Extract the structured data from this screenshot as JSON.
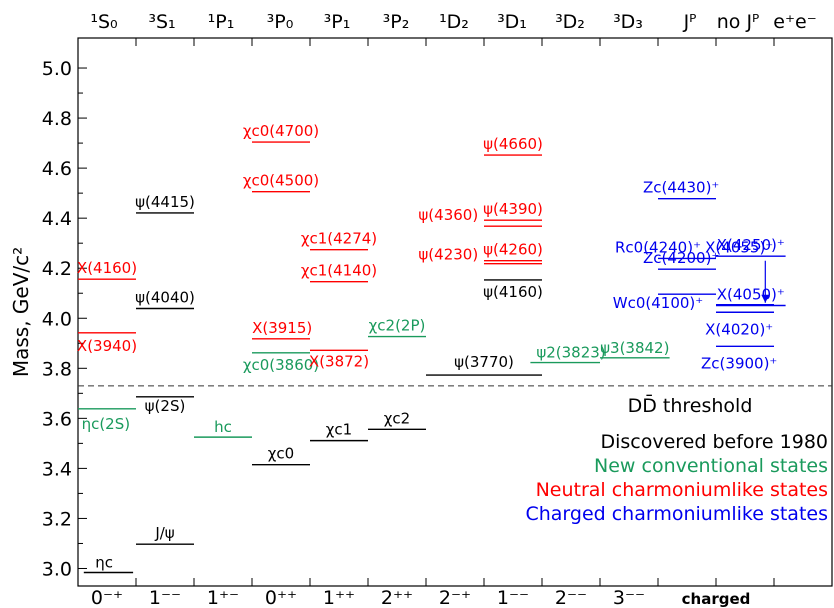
{
  "chart_data": {
    "type": "scatter",
    "ylabel": "Mass, GeV/c²",
    "ylim": [
      2.93,
      5.12
    ],
    "yticks": [
      3.0,
      3.2,
      3.4,
      3.6,
      3.8,
      4.0,
      4.2,
      4.4,
      4.6,
      4.8,
      5.0
    ],
    "top_columns": [
      "¹S₀",
      "³S₁",
      "¹P₁",
      "³P₀",
      "³P₁",
      "³P₂",
      "¹D₂",
      "³D₁",
      "³D₂",
      "³D₃",
      "Jᴾ",
      "no Jᴾ",
      "e⁺e⁻"
    ],
    "bottom_columns": [
      "0⁻⁺",
      "1⁻⁻",
      "1⁺⁻",
      "0⁺⁺",
      "1⁺⁺",
      "2⁺⁺",
      "2⁻⁺",
      "1⁻⁻",
      "2⁻⁻",
      "3⁻⁻",
      "charged"
    ],
    "threshold": {
      "mass": 3.73,
      "label": "DD̄ threshold"
    },
    "legend_placement": "bottom-right",
    "legend": [
      {
        "label": "Discovered before 1980",
        "color": "#000000"
      },
      {
        "label": "New conventional states",
        "color": "#1a9a5c"
      },
      {
        "label": "Neutral charmoniumlike states",
        "color": "#ff0000"
      },
      {
        "label": "Charged charmoniumlike states",
        "color": "#0000ee"
      }
    ],
    "states": [
      {
        "label": "ηc",
        "mass": 2.984,
        "column": 0,
        "category": 0
      },
      {
        "label": "ηc(2S)",
        "mass": 3.638,
        "column": 0,
        "category": 1
      },
      {
        "label": "X(3940)",
        "mass": 3.942,
        "column": 0,
        "category": 2
      },
      {
        "label": "X(4160)",
        "mass": 4.156,
        "column": 0,
        "category": 2
      },
      {
        "label": "J/ψ",
        "mass": 3.097,
        "column": 1,
        "category": 0
      },
      {
        "label": "ψ(2S)",
        "mass": 3.686,
        "column": 1,
        "category": 0
      },
      {
        "label": "ψ(4040)",
        "mass": 4.039,
        "column": 1,
        "category": 0
      },
      {
        "label": "ψ(4415)",
        "mass": 4.421,
        "column": 1,
        "category": 0
      },
      {
        "label": "hc",
        "mass": 3.525,
        "column": 2,
        "category": 1
      },
      {
        "label": "χc0",
        "mass": 3.415,
        "column": 3,
        "category": 0
      },
      {
        "label": "χc0(3860)",
        "mass": 3.862,
        "column": 3,
        "category": 1
      },
      {
        "label": "X(3915)",
        "mass": 3.918,
        "column": 3,
        "category": 2
      },
      {
        "label": "χc0(4500)",
        "mass": 4.506,
        "column": 3,
        "category": 2
      },
      {
        "label": "χc0(4700)",
        "mass": 4.704,
        "column": 3,
        "category": 2
      },
      {
        "label": "χc1",
        "mass": 3.511,
        "column": 4,
        "category": 0
      },
      {
        "label": "X(3872)",
        "mass": 3.872,
        "column": 4,
        "category": 2
      },
      {
        "label": "χc1(4140)",
        "mass": 4.146,
        "column": 4,
        "category": 2
      },
      {
        "label": "χc1(4274)",
        "mass": 4.274,
        "column": 4,
        "category": 2
      },
      {
        "label": "χc2",
        "mass": 3.556,
        "column": 5,
        "category": 0
      },
      {
        "label": "χc2(2P)",
        "mass": 3.927,
        "column": 5,
        "category": 1
      },
      {
        "label": "ψ(3770)",
        "mass": 3.773,
        "column": 7,
        "category": 0
      },
      {
        "label": "ψ(4160)",
        "mass": 4.153,
        "column": 7,
        "category": 0
      },
      {
        "label": "ψ(4230)",
        "mass": 4.218,
        "column": 7,
        "category": 2
      },
      {
        "label": "ψ(4260)",
        "mass": 4.23,
        "column": 7,
        "category": 2
      },
      {
        "label": "ψ(4360)",
        "mass": 4.368,
        "column": 7,
        "category": 2
      },
      {
        "label": "ψ(4390)",
        "mass": 4.392,
        "column": 7,
        "category": 2
      },
      {
        "label": "ψ(4660)",
        "mass": 4.652,
        "column": 7,
        "category": 2
      },
      {
        "label": "ψ2(3823)",
        "mass": 3.823,
        "column": 8,
        "category": 1
      },
      {
        "label": "ψ3(3842)",
        "mass": 3.842,
        "column": 9,
        "category": 1
      },
      {
        "label": "Zc(3900)⁺",
        "mass": 3.888,
        "column": 11,
        "category": 3
      },
      {
        "label": "X(4020)⁺",
        "mass": 4.024,
        "column": 11,
        "category": 3
      },
      {
        "label": "X(4050)⁺",
        "mass": 4.051,
        "column": 10,
        "category": 3
      },
      {
        "label": "Wc0(4100)⁺",
        "mass": 4.096,
        "column": 10,
        "category": 3
      },
      {
        "label": "Zc(4200)⁺",
        "mass": 4.196,
        "column": 10,
        "category": 3
      },
      {
        "label": "Rc0(4240)⁺",
        "mass": 4.239,
        "column": 10,
        "category": 3
      },
      {
        "label": "X(4250)⁺",
        "mass": 4.248,
        "column": 10,
        "category": 3
      },
      {
        "label": "Zc(4430)⁺",
        "mass": 4.478,
        "column": 10,
        "category": 3
      },
      {
        "label": "X(4055)⁺",
        "mass": 4.054,
        "column": 11,
        "category": 3
      }
    ]
  }
}
